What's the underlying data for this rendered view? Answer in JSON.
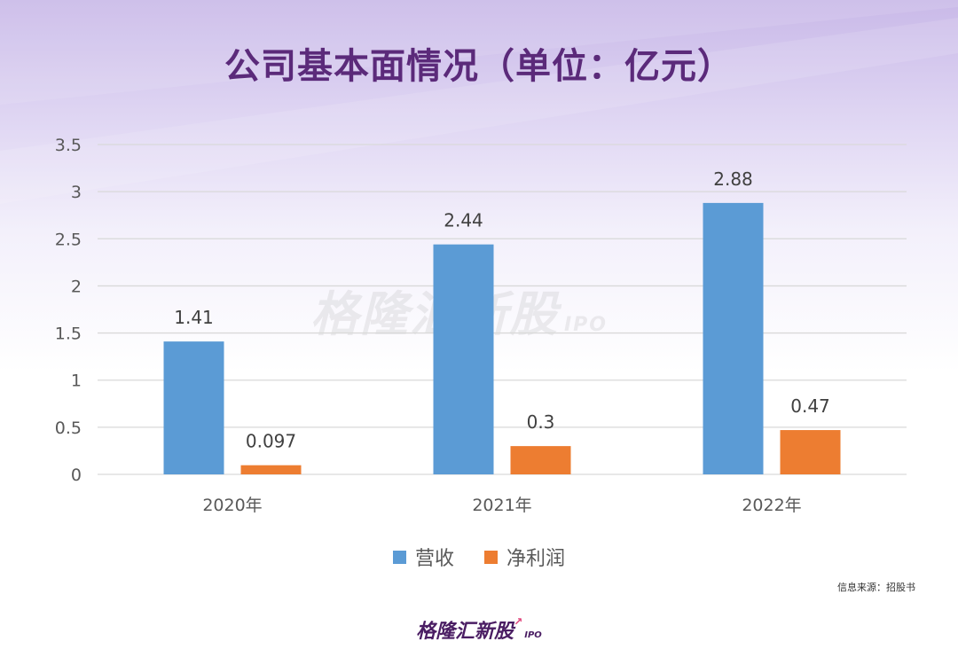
{
  "title": "公司基本面情况（单位：亿元）",
  "chart_data": {
    "type": "bar",
    "categories": [
      "2020年",
      "2021年",
      "2022年"
    ],
    "series": [
      {
        "name": "营收",
        "values": [
          1.41,
          2.44,
          2.88
        ],
        "labels": [
          "1.41",
          "2.44",
          "2.88"
        ],
        "color": "#5b9bd5"
      },
      {
        "name": "净利润",
        "values": [
          0.097,
          0.3,
          0.47
        ],
        "labels": [
          "0.097",
          "0.3",
          "0.47"
        ],
        "color": "#ed7d31"
      }
    ],
    "yticks": [
      "0",
      "0.5",
      "1",
      "1.5",
      "2",
      "2.5",
      "3",
      "3.5"
    ],
    "ylim": [
      0,
      3.5
    ],
    "grid": true,
    "legend_position": "bottom"
  },
  "source": "信息来源：招股书",
  "watermark": {
    "text": "格隆汇新股",
    "sub": "IPO"
  },
  "brand": {
    "text": "格隆汇新股",
    "sub": "IPO"
  }
}
